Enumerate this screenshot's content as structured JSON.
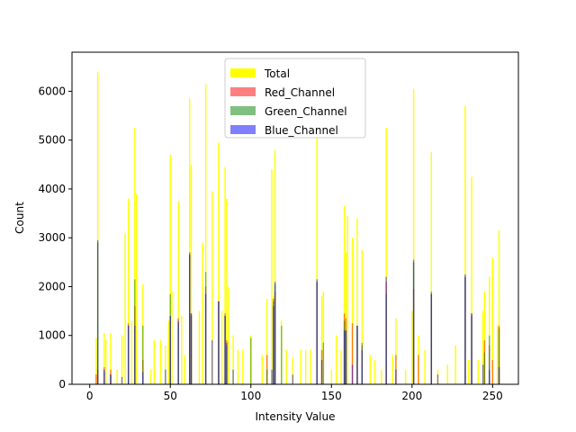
{
  "chart_data": {
    "type": "bar",
    "title": "",
    "xlabel": "Intensity Value",
    "ylabel": "Count",
    "xlim": [
      -11,
      266
    ],
    "ylim": [
      0,
      6800
    ],
    "xticks": [
      0,
      50,
      100,
      150,
      200,
      250
    ],
    "yticks": [
      0,
      1000,
      2000,
      3000,
      4000,
      5000,
      6000
    ],
    "grid": false,
    "legend_position": "top-center",
    "series": [
      {
        "name": "Total",
        "color": "#ffff00",
        "opacity": 1.0,
        "points": [
          [
            4,
            950
          ],
          [
            5,
            6400
          ],
          [
            9,
            1050
          ],
          [
            10,
            900
          ],
          [
            13,
            1050
          ],
          [
            17,
            300
          ],
          [
            20,
            1000
          ],
          [
            22,
            3100
          ],
          [
            24,
            3800
          ],
          [
            26,
            1300
          ],
          [
            28,
            5250
          ],
          [
            29,
            3900
          ],
          [
            33,
            2050
          ],
          [
            38,
            300
          ],
          [
            40,
            900
          ],
          [
            44,
            900
          ],
          [
            47,
            800
          ],
          [
            49,
            1300
          ],
          [
            50,
            4700
          ],
          [
            51,
            1900
          ],
          [
            55,
            3750
          ],
          [
            57,
            1400
          ],
          [
            59,
            600
          ],
          [
            62,
            5850
          ],
          [
            63,
            4500
          ],
          [
            68,
            1500
          ],
          [
            70,
            2900
          ],
          [
            72,
            6150
          ],
          [
            76,
            3950
          ],
          [
            80,
            4950
          ],
          [
            82,
            1500
          ],
          [
            84,
            4450
          ],
          [
            85,
            3800
          ],
          [
            86,
            2000
          ],
          [
            89,
            1000
          ],
          [
            92,
            700
          ],
          [
            95,
            700
          ],
          [
            100,
            1000
          ],
          [
            107,
            600
          ],
          [
            110,
            1750
          ],
          [
            113,
            4400
          ],
          [
            114,
            1800
          ],
          [
            115,
            4800
          ],
          [
            119,
            1300
          ],
          [
            122,
            700
          ],
          [
            126,
            550
          ],
          [
            131,
            700
          ],
          [
            134,
            700
          ],
          [
            137,
            700
          ],
          [
            141,
            5050
          ],
          [
            144,
            1800
          ],
          [
            145,
            1900
          ],
          [
            150,
            300
          ],
          [
            153,
            1000
          ],
          [
            156,
            700
          ],
          [
            158,
            3650
          ],
          [
            159,
            2700
          ],
          [
            160,
            3450
          ],
          [
            163,
            3000
          ],
          [
            166,
            3400
          ],
          [
            169,
            2750
          ],
          [
            174,
            600
          ],
          [
            177,
            500
          ],
          [
            181,
            300
          ],
          [
            184,
            5250
          ],
          [
            188,
            600
          ],
          [
            190,
            1350
          ],
          [
            196,
            300
          ],
          [
            200,
            1500
          ],
          [
            201,
            6050
          ],
          [
            204,
            1000
          ],
          [
            208,
            700
          ],
          [
            212,
            4750
          ],
          [
            216,
            300
          ],
          [
            222,
            400
          ],
          [
            227,
            800
          ],
          [
            233,
            5700
          ],
          [
            235,
            500
          ],
          [
            237,
            4250
          ],
          [
            241,
            500
          ],
          [
            244,
            1500
          ],
          [
            245,
            1900
          ],
          [
            248,
            2200
          ],
          [
            250,
            2600
          ],
          [
            253,
            1200
          ],
          [
            254,
            3150
          ]
        ]
      },
      {
        "name": "Red_Channel",
        "color": "#ff0000",
        "opacity": 0.5,
        "points": [
          [
            4,
            200
          ],
          [
            5,
            300
          ],
          [
            9,
            350
          ],
          [
            13,
            300
          ],
          [
            24,
            1250
          ],
          [
            28,
            1600
          ],
          [
            33,
            500
          ],
          [
            50,
            1400
          ],
          [
            55,
            1350
          ],
          [
            62,
            2650
          ],
          [
            63,
            1450
          ],
          [
            72,
            2000
          ],
          [
            80,
            1700
          ],
          [
            84,
            1450
          ],
          [
            85,
            900
          ],
          [
            110,
            600
          ],
          [
            114,
            1750
          ],
          [
            115,
            1900
          ],
          [
            141,
            2100
          ],
          [
            144,
            700
          ],
          [
            158,
            1450
          ],
          [
            159,
            1350
          ],
          [
            163,
            1250
          ],
          [
            166,
            1200
          ],
          [
            169,
            800
          ],
          [
            184,
            2100
          ],
          [
            190,
            600
          ],
          [
            201,
            1950
          ],
          [
            204,
            600
          ],
          [
            212,
            1850
          ],
          [
            233,
            2200
          ],
          [
            237,
            1450
          ],
          [
            245,
            900
          ],
          [
            248,
            800
          ],
          [
            250,
            500
          ],
          [
            254,
            1200
          ]
        ]
      },
      {
        "name": "Green_Channel",
        "color": "#008000",
        "opacity": 0.5,
        "points": [
          [
            5,
            2900
          ],
          [
            9,
            250
          ],
          [
            13,
            200
          ],
          [
            24,
            1200
          ],
          [
            28,
            2150
          ],
          [
            33,
            1200
          ],
          [
            50,
            1850
          ],
          [
            55,
            1250
          ],
          [
            62,
            2650
          ],
          [
            63,
            1400
          ],
          [
            72,
            2300
          ],
          [
            80,
            1700
          ],
          [
            84,
            1400
          ],
          [
            85,
            800
          ],
          [
            100,
            950
          ],
          [
            110,
            300
          ],
          [
            114,
            1700
          ],
          [
            115,
            2050
          ],
          [
            119,
            1200
          ],
          [
            141,
            2100
          ],
          [
            145,
            850
          ],
          [
            158,
            1300
          ],
          [
            159,
            1100
          ],
          [
            166,
            1200
          ],
          [
            169,
            850
          ],
          [
            184,
            1850
          ],
          [
            201,
            2500
          ],
          [
            212,
            1900
          ],
          [
            233,
            2200
          ],
          [
            237,
            1400
          ],
          [
            245,
            650
          ],
          [
            248,
            1000
          ],
          [
            254,
            1150
          ]
        ]
      },
      {
        "name": "Blue_Channel",
        "color": "#0000ff",
        "opacity": 0.5,
        "points": [
          [
            5,
            2950
          ],
          [
            9,
            300
          ],
          [
            13,
            200
          ],
          [
            20,
            150
          ],
          [
            24,
            1200
          ],
          [
            28,
            1200
          ],
          [
            33,
            250
          ],
          [
            47,
            300
          ],
          [
            50,
            1400
          ],
          [
            55,
            1300
          ],
          [
            62,
            2700
          ],
          [
            63,
            1450
          ],
          [
            72,
            1850
          ],
          [
            76,
            900
          ],
          [
            80,
            1700
          ],
          [
            84,
            1400
          ],
          [
            85,
            850
          ],
          [
            89,
            300
          ],
          [
            113,
            300
          ],
          [
            114,
            1600
          ],
          [
            115,
            2100
          ],
          [
            126,
            200
          ],
          [
            141,
            2150
          ],
          [
            144,
            500
          ],
          [
            158,
            1100
          ],
          [
            159,
            1100
          ],
          [
            163,
            400
          ],
          [
            166,
            1200
          ],
          [
            169,
            700
          ],
          [
            184,
            2200
          ],
          [
            190,
            300
          ],
          [
            201,
            2550
          ],
          [
            212,
            1850
          ],
          [
            216,
            200
          ],
          [
            233,
            2250
          ],
          [
            237,
            1450
          ],
          [
            244,
            400
          ],
          [
            248,
            300
          ],
          [
            254,
            350
          ]
        ]
      }
    ]
  }
}
